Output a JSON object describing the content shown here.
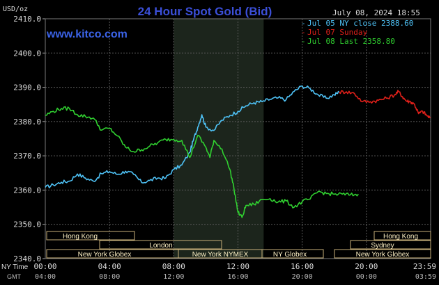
{
  "header": {
    "title": "24 Hour Spot Gold (Bid)",
    "datetime": "July 08, 2024 18:55",
    "site": "www.kitco.com",
    "unit": "USD/oz"
  },
  "legend": [
    {
      "label": "Jul 05 NY close 2388.60",
      "color": "#4fc3f7"
    },
    {
      "label": "Jul 07 Sunday",
      "color": "#e0201a"
    },
    {
      "label": "Jul 08 Last 2358.80",
      "color": "#30d030"
    }
  ],
  "time_axis": {
    "ny_label": "NY Time",
    "gmt_label": "GMT",
    "ny_ticks": [
      "00:00",
      "04:00",
      "08:00",
      "12:00",
      "16:00",
      "20:00",
      "23:59"
    ],
    "gmt_ticks": [
      "04:00",
      "08:00",
      "12:00",
      "16:00",
      "20:00",
      "00:00",
      "03:59"
    ]
  },
  "sessions": {
    "hong_kong_1": "Hong Kong",
    "hong_kong_2": "Hong Kong",
    "london": "London",
    "new_york_globex_1": "New York Globex",
    "new_york_nymex": "New York NYMEX",
    "ny_globex": "NY Globex",
    "sydney": "Sydney",
    "new_york_globex_2": "New York Globex"
  },
  "colors": {
    "background": "#000000",
    "title": "#3b4fd8",
    "site": "#3b63e8",
    "grid": "#6a6a6a",
    "session_fill": "#fff2c6",
    "shade": "#1c251c",
    "cyan": "#4fc3f7",
    "red": "#e0201a",
    "green": "#30d030"
  },
  "chart_data": {
    "type": "line",
    "title": "24 Hour Spot Gold (Bid)",
    "ylabel": "USD/oz",
    "xlabel": "NY Time",
    "ylim": [
      2340,
      2410
    ],
    "xlim": [
      0,
      24
    ],
    "yticks": [
      "2410.0",
      "2400.0",
      "2390.0",
      "2380.0",
      "2370.0",
      "2360.0",
      "2350.0",
      "2340.0"
    ],
    "shaded_region": [
      8,
      13.6
    ],
    "series": [
      {
        "name": "Jul 05 NY close 2388.60",
        "color": "#4fc3f7",
        "points": [
          [
            0,
            2360.8
          ],
          [
            0.5,
            2361.5
          ],
          [
            1,
            2362.3
          ],
          [
            1.5,
            2362.6
          ],
          [
            2,
            2364.7
          ],
          [
            2.5,
            2363.5
          ],
          [
            3,
            2362.6
          ],
          [
            3.5,
            2364.8
          ],
          [
            4,
            2365.4
          ],
          [
            4.5,
            2364.6
          ],
          [
            5,
            2365.5
          ],
          [
            5.5,
            2364.6
          ],
          [
            6,
            2362.2
          ],
          [
            6.5,
            2362.8
          ],
          [
            7,
            2363.5
          ],
          [
            7.5,
            2363.5
          ],
          [
            8,
            2366.0
          ],
          [
            8.5,
            2367.3
          ],
          [
            9,
            2371.0
          ],
          [
            9.25,
            2375.0
          ],
          [
            9.5,
            2378.4
          ],
          [
            9.75,
            2382.0
          ],
          [
            10,
            2378.4
          ],
          [
            10.5,
            2377.4
          ],
          [
            11,
            2380.4
          ],
          [
            11.5,
            2381.8
          ],
          [
            12,
            2383.0
          ],
          [
            12.5,
            2384.6
          ],
          [
            13,
            2385.5
          ],
          [
            13.5,
            2385.8
          ],
          [
            14,
            2386.5
          ],
          [
            14.5,
            2386.9
          ],
          [
            15,
            2386.4
          ],
          [
            15.5,
            2388.8
          ],
          [
            16,
            2390.4
          ],
          [
            16.5,
            2389.6
          ],
          [
            17,
            2387.8
          ],
          [
            17.5,
            2386.8
          ],
          [
            18,
            2387.8
          ],
          [
            18.3,
            2388.6
          ]
        ]
      },
      {
        "name": "Jul 07 Sunday",
        "color": "#e0201a",
        "points": [
          [
            18.3,
            2388.6
          ],
          [
            18.75,
            2388.7
          ],
          [
            19.25,
            2388.2
          ],
          [
            19.75,
            2385.8
          ],
          [
            20.25,
            2385.8
          ],
          [
            20.75,
            2386.2
          ],
          [
            21.25,
            2386.8
          ],
          [
            21.75,
            2387.8
          ],
          [
            22,
            2388.8
          ],
          [
            22.25,
            2387.2
          ],
          [
            22.5,
            2386.0
          ],
          [
            22.75,
            2385.8
          ],
          [
            23,
            2385.0
          ],
          [
            23.25,
            2382.3
          ],
          [
            23.5,
            2383.0
          ],
          [
            23.75,
            2381.8
          ],
          [
            23.98,
            2381.0
          ]
        ]
      },
      {
        "name": "Jul 08 Last 2358.80",
        "color": "#30d030",
        "points": [
          [
            0,
            2381.8
          ],
          [
            0.5,
            2383.0
          ],
          [
            1,
            2383.8
          ],
          [
            1.5,
            2383.8
          ],
          [
            2,
            2382.0
          ],
          [
            2.5,
            2381.5
          ],
          [
            3,
            2381.0
          ],
          [
            3.5,
            2377.5
          ],
          [
            4,
            2378.0
          ],
          [
            4.5,
            2375.8
          ],
          [
            5,
            2372.5
          ],
          [
            5.5,
            2371.2
          ],
          [
            6,
            2371.8
          ],
          [
            6.5,
            2372.8
          ],
          [
            7,
            2373.8
          ],
          [
            7.5,
            2374.8
          ],
          [
            8,
            2374.8
          ],
          [
            8.5,
            2374.5
          ],
          [
            9,
            2369.5
          ],
          [
            9.5,
            2376.0
          ],
          [
            10,
            2372.5
          ],
          [
            10.25,
            2369.5
          ],
          [
            10.5,
            2374.5
          ],
          [
            11,
            2372.0
          ],
          [
            11.5,
            2366.0
          ],
          [
            11.75,
            2360.5
          ],
          [
            12,
            2353.5
          ],
          [
            12.25,
            2352.0
          ],
          [
            12.5,
            2355.5
          ],
          [
            13,
            2355.8
          ],
          [
            13.5,
            2357.2
          ],
          [
            14,
            2357.5
          ],
          [
            14.5,
            2356.5
          ],
          [
            15,
            2356.8
          ],
          [
            15.5,
            2355.0
          ],
          [
            16,
            2356.6
          ],
          [
            16.5,
            2357.4
          ],
          [
            17,
            2359.6
          ],
          [
            17.5,
            2359.0
          ],
          [
            18,
            2358.8
          ],
          [
            18.5,
            2358.8
          ],
          [
            19,
            2358.6
          ],
          [
            19.5,
            2358.8
          ]
        ]
      }
    ]
  }
}
